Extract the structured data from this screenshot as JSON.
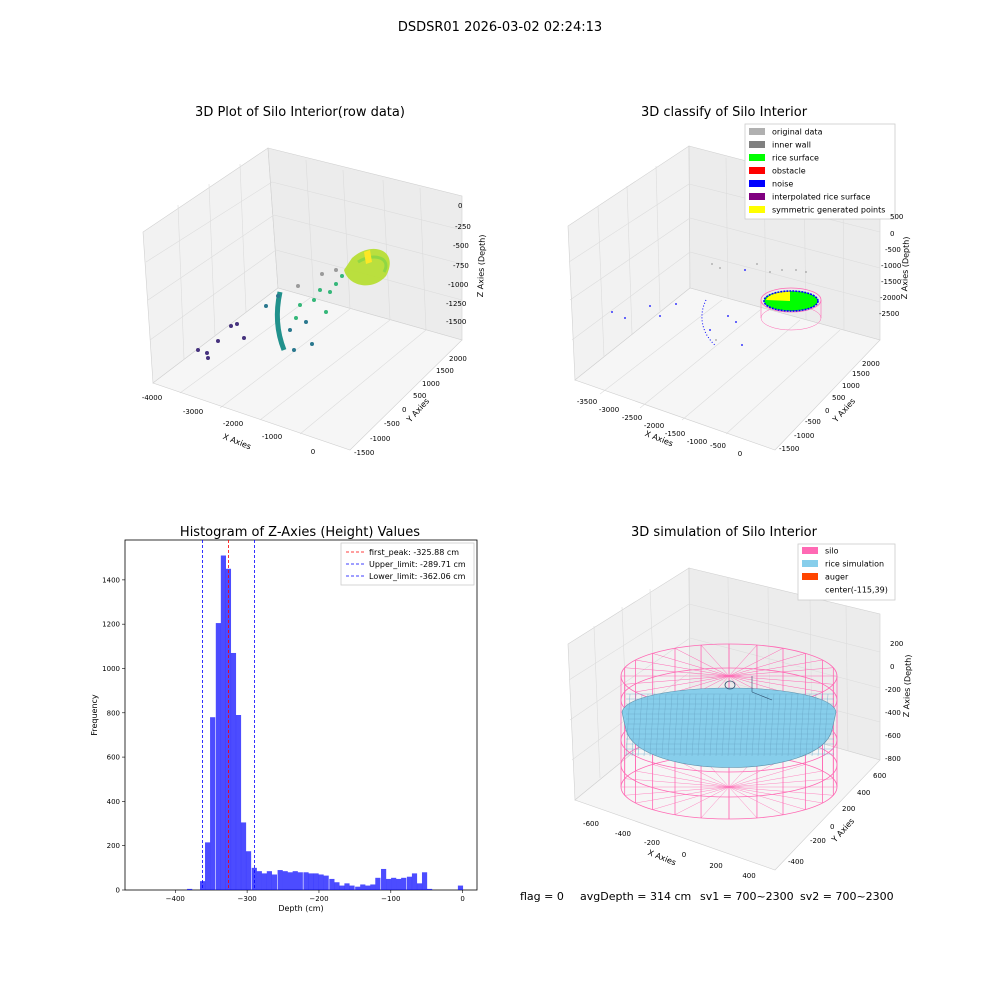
{
  "figure_title": "DSDSR01 2026-03-02 02:24:13",
  "status": {
    "flag": "flag = 0",
    "avg_depth": "avgDepth = 314 cm",
    "sv1": "sv1 = 700~2300",
    "sv2": "sv2 = 700~2300"
  },
  "panels": {
    "raw": {
      "title": "3D Plot of Silo Interior(row data)",
      "xlabel": "X Axies",
      "ylabel": "Y Axies",
      "zlabel": "Z Axies (Depth)",
      "xticks": [
        "-4000",
        "-3000",
        "-2000",
        "-1000",
        "0"
      ],
      "yticks": [
        "-1500",
        "-1000",
        "-500",
        "0",
        "500",
        "1000",
        "1500",
        "2000"
      ],
      "zticks": [
        "0",
        "-250",
        "-500",
        "-750",
        "-1000",
        "-1250",
        "-1500"
      ]
    },
    "classify": {
      "title": "3D classify of Silo Interior",
      "xlabel": "X Axies",
      "ylabel": "Y Axies",
      "zlabel": "Z Axies (Depth)",
      "xticks": [
        "-3500",
        "-3000",
        "-2500",
        "-2000",
        "-1500",
        "-1000",
        "-500",
        "0"
      ],
      "yticks": [
        "-1500",
        "-1000",
        "-500",
        "0",
        "500",
        "1000",
        "1500",
        "2000"
      ],
      "zticks": [
        "500",
        "0",
        "-500",
        "-1000",
        "-1500",
        "-2000",
        "-2500"
      ],
      "legend": [
        {
          "label": "original data",
          "color": "#b0b0b0"
        },
        {
          "label": "inner wall",
          "color": "#808080"
        },
        {
          "label": "rice surface",
          "color": "#00ff00"
        },
        {
          "label": "obstacle",
          "color": "#ff0000"
        },
        {
          "label": "noise",
          "color": "#0000ff"
        },
        {
          "label": "interpolated rice surface",
          "color": "#800080"
        },
        {
          "label": "symmetric generated points",
          "color": "#ffff00"
        }
      ]
    },
    "simulation": {
      "title": "3D simulation of Silo Interior",
      "xlabel": "X Axies",
      "ylabel": "Y Axies",
      "zlabel": "Z Axies (Depth)",
      "xticks": [
        "-600",
        "-400",
        "-200",
        "0",
        "200",
        "400"
      ],
      "yticks": [
        "-400",
        "-200",
        "0",
        "200",
        "400",
        "600"
      ],
      "zticks": [
        "200",
        "0",
        "-200",
        "-400",
        "-600",
        "-800"
      ],
      "legend": [
        {
          "label": "silo",
          "color": "#ff69b4"
        },
        {
          "label": "rice simulation",
          "color": "#87ceeb"
        },
        {
          "label": "auger",
          "color": "#ff4500"
        },
        {
          "label": "center(-115,39)",
          "color": ""
        }
      ]
    }
  },
  "chart_data": [
    {
      "type": "histogram",
      "title": "Histogram of Z-Axies (Height) Values",
      "xlabel": "Depth (cm)",
      "ylabel": "Frequency",
      "xlim": [
        -470,
        20
      ],
      "ylim": [
        0,
        1580
      ],
      "xticks": [
        -400,
        -300,
        -200,
        -100,
        0
      ],
      "yticks": [
        0,
        200,
        400,
        600,
        800,
        1000,
        1200,
        1400
      ],
      "bar_color": "#0000ff",
      "bar_width": 7.2,
      "bars": [
        {
          "x": -380,
          "y": 5
        },
        {
          "x": -362,
          "y": 40
        },
        {
          "x": -355,
          "y": 215
        },
        {
          "x": -348,
          "y": 780
        },
        {
          "x": -340,
          "y": 1205
        },
        {
          "x": -333,
          "y": 1510
        },
        {
          "x": -326,
          "y": 1450
        },
        {
          "x": -319,
          "y": 1070
        },
        {
          "x": -312,
          "y": 790
        },
        {
          "x": -305,
          "y": 305
        },
        {
          "x": -298,
          "y": 175
        },
        {
          "x": -290,
          "y": 100
        },
        {
          "x": -283,
          "y": 85
        },
        {
          "x": -276,
          "y": 75
        },
        {
          "x": -269,
          "y": 85
        },
        {
          "x": -262,
          "y": 70
        },
        {
          "x": -254,
          "y": 90
        },
        {
          "x": -247,
          "y": 85
        },
        {
          "x": -240,
          "y": 80
        },
        {
          "x": -233,
          "y": 85
        },
        {
          "x": -226,
          "y": 80
        },
        {
          "x": -218,
          "y": 80
        },
        {
          "x": -211,
          "y": 75
        },
        {
          "x": -204,
          "y": 75
        },
        {
          "x": -197,
          "y": 70
        },
        {
          "x": -190,
          "y": 65
        },
        {
          "x": -182,
          "y": 50
        },
        {
          "x": -175,
          "y": 35
        },
        {
          "x": -168,
          "y": 20
        },
        {
          "x": -161,
          "y": 30
        },
        {
          "x": -154,
          "y": 20
        },
        {
          "x": -146,
          "y": 15
        },
        {
          "x": -139,
          "y": 25
        },
        {
          "x": -132,
          "y": 20
        },
        {
          "x": -125,
          "y": 25
        },
        {
          "x": -118,
          "y": 55
        },
        {
          "x": -110,
          "y": 95
        },
        {
          "x": -103,
          "y": 50
        },
        {
          "x": -96,
          "y": 55
        },
        {
          "x": -89,
          "y": 50
        },
        {
          "x": -82,
          "y": 55
        },
        {
          "x": -74,
          "y": 60
        },
        {
          "x": -67,
          "y": 75
        },
        {
          "x": -60,
          "y": 30
        },
        {
          "x": -53,
          "y": 80
        },
        {
          "x": -46,
          "y": 5
        },
        {
          "x": -3,
          "y": 20
        }
      ],
      "vlines": [
        {
          "label": "first_peak: -325.88 cm",
          "x": -325.88,
          "color": "#ff0000"
        },
        {
          "label": "Upper_limit: -289.71 cm",
          "x": -289.71,
          "color": "#0000ff"
        },
        {
          "label": "Lower_limit: -362.06 cm",
          "x": -362.06,
          "color": "#0000ff"
        }
      ],
      "legend_position": "upper right",
      "grid": false
    }
  ]
}
